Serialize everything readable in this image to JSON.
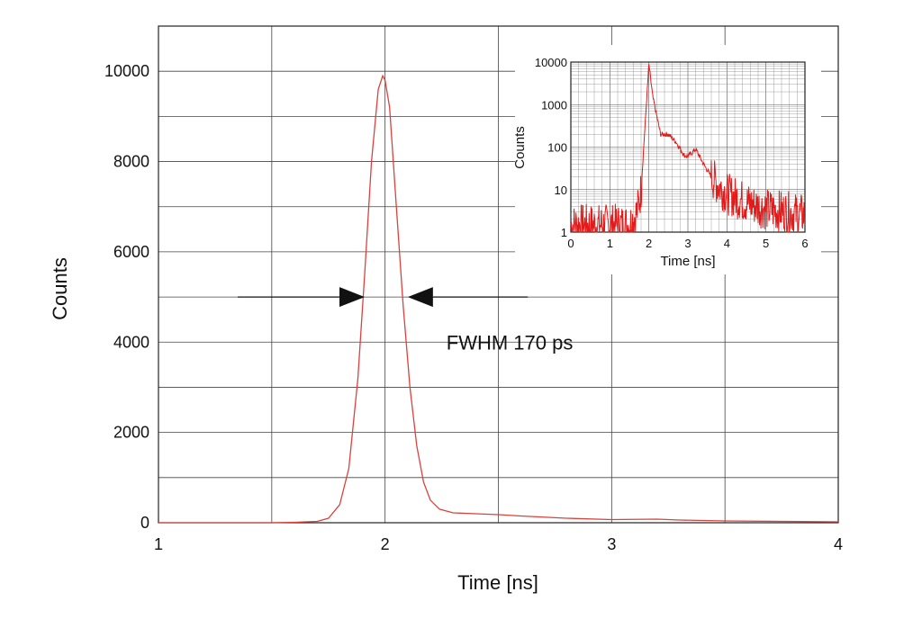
{
  "chart_data": [
    {
      "type": "line",
      "title": "",
      "xlabel": "Time [ns]",
      "ylabel": "Counts",
      "xlim": [
        1,
        4
      ],
      "ylim": [
        0,
        11000
      ],
      "grid": true,
      "x_ticks": [
        "1",
        "2",
        "3",
        "4"
      ],
      "y_ticks": [
        "0",
        "2000",
        "4000",
        "6000",
        "8000",
        "10000"
      ],
      "series": [
        {
          "color": "#d9433e",
          "x": [
            1.0,
            1.5,
            1.6,
            1.7,
            1.75,
            1.8,
            1.84,
            1.88,
            1.91,
            1.94,
            1.97,
            1.99,
            2.0,
            2.02,
            2.05,
            2.08,
            2.11,
            2.14,
            2.17,
            2.2,
            2.24,
            2.3,
            2.4,
            2.5,
            2.6,
            2.8,
            3.0,
            3.2,
            3.3,
            3.5,
            4.0
          ],
          "values": [
            0,
            0,
            10,
            30,
            100,
            400,
            1200,
            3200,
            5500,
            8000,
            9600,
            9900,
            9800,
            9200,
            7000,
            4800,
            3000,
            1700,
            900,
            500,
            300,
            220,
            200,
            180,
            150,
            100,
            70,
            80,
            60,
            40,
            20
          ]
        }
      ],
      "annotations": [
        {
          "text": "FWHM 170 ps",
          "x": 2.55,
          "y": 4000
        },
        {
          "type": "arrow-left",
          "x_from": 1.35,
          "x_to": 1.91,
          "y": 5000
        },
        {
          "type": "arrow-right",
          "x_from": 2.63,
          "x_to": 2.1,
          "y": 5000
        }
      ]
    },
    {
      "type": "line",
      "title": "",
      "xlabel": "Time [ns]",
      "ylabel": "Counts",
      "xlim": [
        0,
        6
      ],
      "ylim": [
        1,
        10000
      ],
      "y_scale": "log",
      "grid": true,
      "x_ticks": [
        "0",
        "1",
        "2",
        "3",
        "4",
        "5",
        "6"
      ],
      "y_ticks": [
        "1",
        "10",
        "100",
        "1000",
        "10000"
      ],
      "series": [
        {
          "color": "#e21a1a",
          "x": [
            0,
            1.5,
            1.7,
            1.8,
            1.9,
            2.0,
            2.1,
            2.3,
            2.5,
            2.7,
            2.9,
            3.0,
            3.2,
            3.4,
            3.6,
            3.8,
            4.0,
            4.5,
            5.0,
            5.5,
            6.0
          ],
          "values": [
            1.5,
            1.5,
            3,
            10,
            300,
            9000,
            1500,
            200,
            200,
            130,
            65,
            60,
            90,
            40,
            20,
            12,
            8,
            5,
            3.5,
            3,
            2.5
          ]
        }
      ]
    }
  ]
}
